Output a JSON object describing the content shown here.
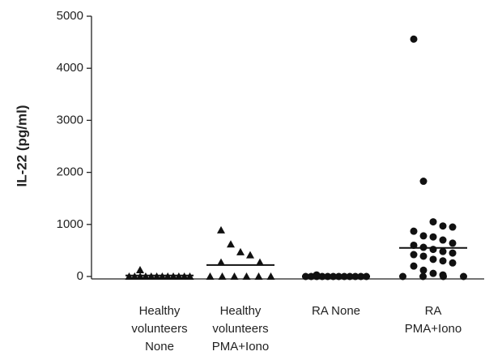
{
  "chart_data": {
    "type": "strip",
    "y_label": "IL-22 (pg/ml)",
    "categories": [
      [
        "Healthy",
        "volunteers",
        "None"
      ],
      [
        "Healthy",
        "volunteers",
        "PMA+Iono"
      ],
      [
        "RA None"
      ],
      [
        "RA",
        "PMA+Iono"
      ]
    ],
    "ylim": [
      0,
      5000
    ],
    "yticks": [
      0,
      1000,
      2000,
      3000,
      4000,
      5000
    ],
    "color": "#111111",
    "series": [
      {
        "marker": "triangle",
        "values": [
          0,
          0,
          0,
          0,
          0,
          0,
          0,
          0,
          0,
          0,
          0,
          125,
          0
        ],
        "mean": 20
      },
      {
        "marker": "triangle",
        "values": [
          890,
          620,
          470,
          410,
          270,
          270,
          0,
          0,
          0,
          0,
          0,
          0
        ],
        "mean": 220
      },
      {
        "marker": "circle",
        "values": [
          0,
          0,
          0,
          0,
          0,
          0,
          0,
          0,
          0,
          0,
          0,
          0,
          30
        ],
        "mean": 0
      },
      {
        "marker": "circle",
        "values": [
          4560,
          1830,
          1050,
          970,
          950,
          870,
          780,
          760,
          700,
          640,
          600,
          560,
          520,
          480,
          450,
          420,
          390,
          330,
          300,
          260,
          200,
          120,
          60,
          30,
          0,
          0,
          0,
          0
        ],
        "mean": 550
      }
    ]
  }
}
